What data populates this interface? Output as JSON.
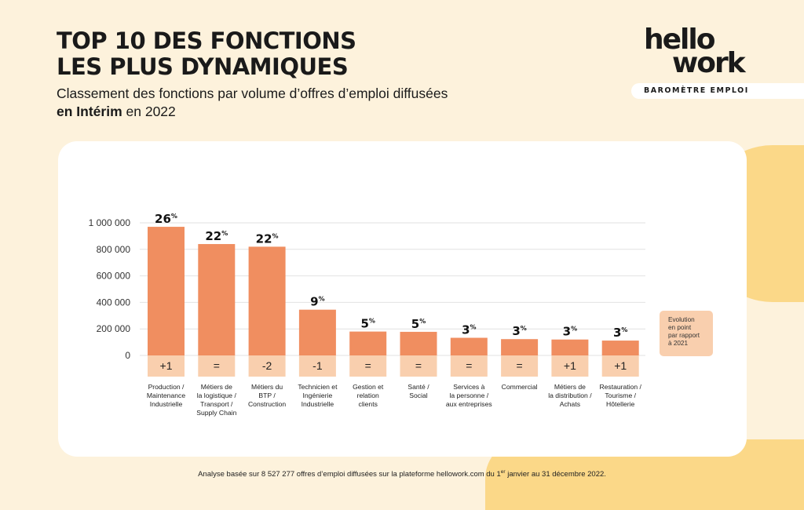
{
  "header": {
    "title_line1": "TOP 10 DES FONCTIONS",
    "title_line2": "LES PLUS DYNAMIQUES",
    "subtitle_line1": "Classement des fonctions par volume d’offres d’emploi diffusées",
    "subtitle_bold": "en Intérim",
    "subtitle_rest": " en 2022"
  },
  "logo": {
    "line1": "hello",
    "line2": "work",
    "badge": "BAROMÈTRE EMPLOI"
  },
  "legend_note": [
    "Evolution",
    "en point",
    "par rapport",
    "à 2021"
  ],
  "footnote": {
    "before": "Analyse basée sur 8 527 277 offres d’emploi diffusées sur la plateforme hellowork.com du 1",
    "sup": "er",
    "after": " janvier au 31 décembre 2022."
  },
  "colors": {
    "bar": "#f08e60",
    "evolution_band": "#f9cfae",
    "background": "#fdf2dc",
    "accent_yellow": "#fbd888"
  },
  "chart_data": {
    "type": "bar",
    "title": "TOP 10 DES FONCTIONS LES PLUS DYNAMIQUES",
    "ylim": [
      0,
      1000000
    ],
    "yticks": [
      0,
      200000,
      400000,
      600000,
      800000,
      1000000
    ],
    "ytick_labels": [
      "0",
      "200 000",
      "400 000",
      "600 000",
      "800 000",
      "1 000 000"
    ],
    "grid": true,
    "categories": [
      [
        "Production /",
        "Maintenance",
        "Industrielle"
      ],
      [
        "Métiers de",
        "la logistique /",
        "Transport /",
        "Supply Chain"
      ],
      [
        "Métiers du",
        "BTP /",
        "Construction"
      ],
      [
        "Technicien et",
        "Ingénierie",
        "Industrielle"
      ],
      [
        "Gestion et",
        "relation",
        "clients"
      ],
      [
        "Santé /",
        "Social"
      ],
      [
        "Services à",
        "la personne /",
        "aux entreprises"
      ],
      [
        "Commercial"
      ],
      [
        "Métiers de",
        "la distribution /",
        "Achats"
      ],
      [
        "Restauration /",
        "Tourisme /",
        "Hôtellerie"
      ]
    ],
    "values": [
      970000,
      840000,
      820000,
      345000,
      180000,
      178000,
      133000,
      123000,
      120000,
      112000
    ],
    "share_labels": [
      "26",
      "22",
      "22",
      "9",
      "5",
      "5",
      "3",
      "3",
      "3",
      "3"
    ],
    "share_unit": "%",
    "evolution": [
      "+1",
      "=",
      "-2",
      "-1",
      "=",
      "=",
      "=",
      "=",
      "+1",
      "+1"
    ]
  }
}
